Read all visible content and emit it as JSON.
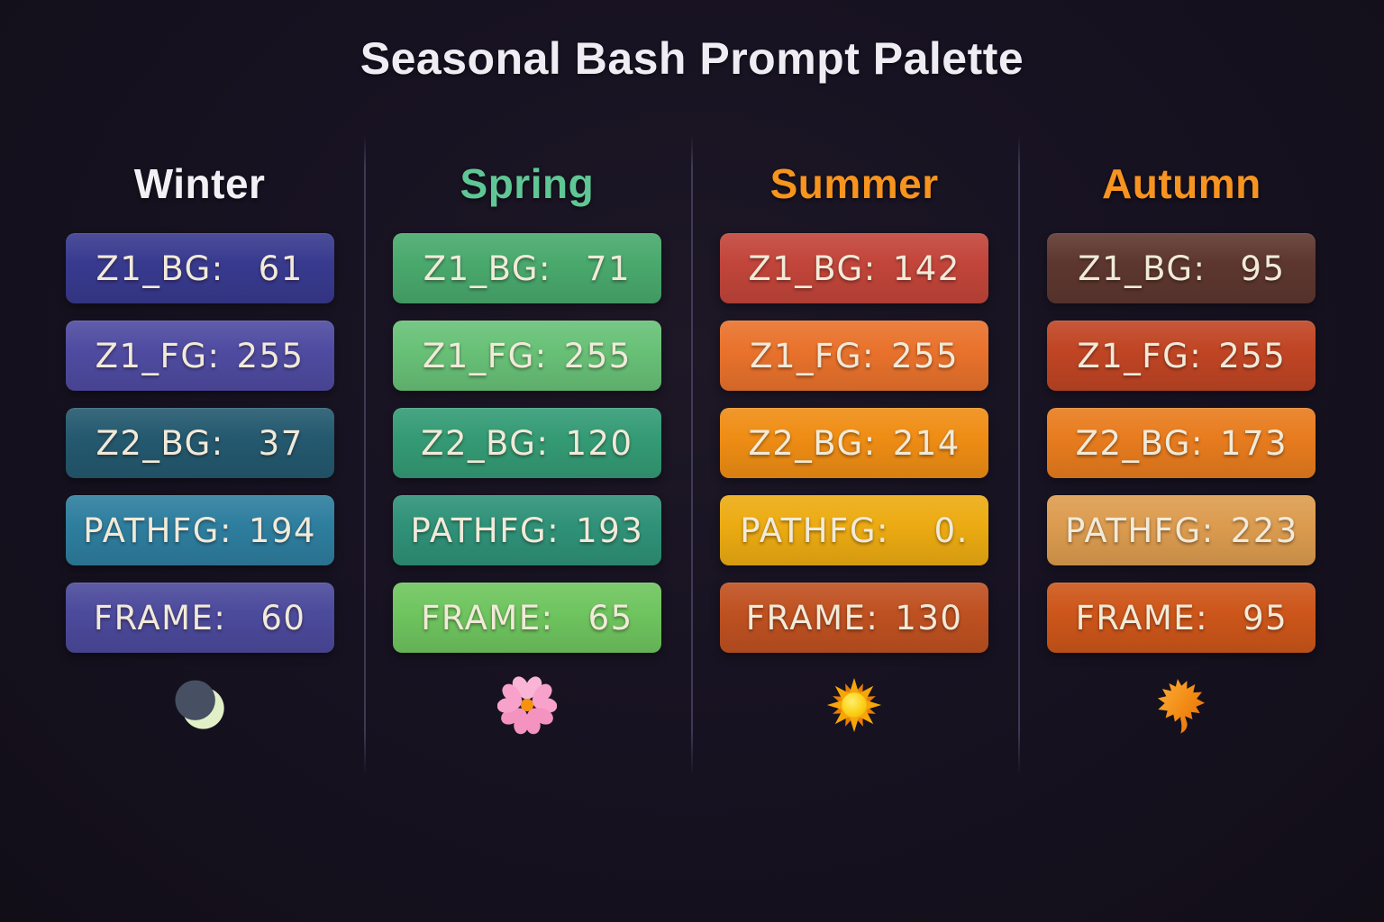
{
  "title": "Seasonal Bash Prompt Palette",
  "theme": {
    "background": "#15101c",
    "divider": "#3e3856",
    "chip_text": "#f1ead9",
    "title_color": "#efedf4"
  },
  "columns": [
    {
      "name": "Winter",
      "header_color": "#f2f0f5",
      "icon": "crescent-moon-icon",
      "rows": [
        {
          "label": "Z1_BG:",
          "value": "61",
          "bg": "#383a8f"
        },
        {
          "label": "Z1_FG:",
          "value": "255",
          "bg": "#4f4ba1"
        },
        {
          "label": "Z2_BG:",
          "value": "37",
          "bg": "#24596f"
        },
        {
          "label": "PATHFG:",
          "value": "194",
          "bg": "#2e7e9f"
        },
        {
          "label": "FRAME:",
          "value": "60",
          "bg": "#4c4a9c"
        }
      ]
    },
    {
      "name": "Spring",
      "header_color": "#5fc795",
      "icon": "cherry-blossom-icon",
      "rows": [
        {
          "label": "Z1_BG:",
          "value": "71",
          "bg": "#49a96d"
        },
        {
          "label": "Z1_FG:",
          "value": "255",
          "bg": "#68c177"
        },
        {
          "label": "Z2_BG:",
          "value": "120",
          "bg": "#349b75"
        },
        {
          "label": "PATHFG:",
          "value": "193",
          "bg": "#2f9278"
        },
        {
          "label": "FRAME:",
          "value": "65",
          "bg": "#6fc55f"
        }
      ]
    },
    {
      "name": "Summer",
      "header_color": "#f7941e",
      "icon": "sun-icon",
      "rows": [
        {
          "label": "Z1_BG:",
          "value": "142",
          "bg": "#c2453a"
        },
        {
          "label": "Z1_FG:",
          "value": "255",
          "bg": "#e9722c"
        },
        {
          "label": "Z2_BG:",
          "value": "214",
          "bg": "#ef8d14"
        },
        {
          "label": "PATHFG:",
          "value": "0.",
          "bg": "#ecab12"
        },
        {
          "label": "FRAME:",
          "value": "130",
          "bg": "#bf5121"
        }
      ]
    },
    {
      "name": "Autumn",
      "header_color": "#f79420",
      "icon": "maple-leaf-icon",
      "rows": [
        {
          "label": "Z1_BG:",
          "value": "95",
          "bg": "#5d372f"
        },
        {
          "label": "Z1_FG:",
          "value": "255",
          "bg": "#c04524"
        },
        {
          "label": "Z2_BG:",
          "value": "173",
          "bg": "#e87c1e"
        },
        {
          "label": "PATHFG:",
          "value": "223",
          "bg": "#dc9c4f"
        },
        {
          "label": "FRAME:",
          "value": "95",
          "bg": "#cd561a"
        }
      ]
    }
  ]
}
